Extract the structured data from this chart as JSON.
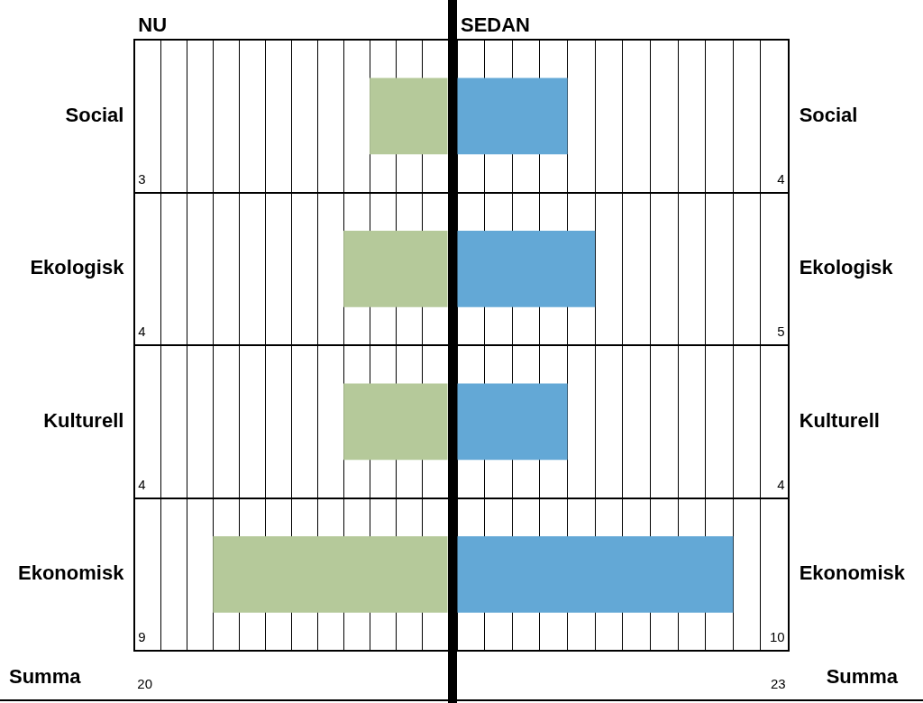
{
  "chart_data": [
    {
      "type": "bar",
      "title": "NU",
      "orientation": "horizontal",
      "categories": [
        "Social",
        "Ekologisk",
        "Kulturell",
        "Ekonomisk"
      ],
      "values": [
        3,
        4,
        4,
        9
      ],
      "color": "#b5c99a",
      "grid": true,
      "tick_labels": "y",
      "data_labels": true,
      "legend": false,
      "annotations": [
        "Summa",
        "20"
      ]
    },
    {
      "type": "bar",
      "title": "SEDAN",
      "orientation": "horizontal",
      "categories": [
        "Social",
        "Ekologisk",
        "Kulturell",
        "Ekonomisk"
      ],
      "values": [
        4,
        5,
        4,
        10
      ],
      "color": "#63a8d6",
      "grid": true,
      "tick_labels": "y",
      "data_labels": true,
      "legend": false,
      "annotations": [
        "Summa",
        "23"
      ]
    }
  ]
}
